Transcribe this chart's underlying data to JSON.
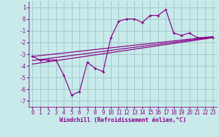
{
  "xlabel": "Windchill (Refroidissement éolien,°C)",
  "background_color": "#c8eaea",
  "grid_color": "#a0c8c8",
  "line_color": "#880088",
  "x_data": [
    0,
    1,
    2,
    3,
    4,
    5,
    6,
    7,
    8,
    9,
    10,
    11,
    12,
    13,
    14,
    15,
    16,
    17,
    18,
    19,
    20,
    21,
    22,
    23
  ],
  "y_main": [
    -3.2,
    -3.5,
    -3.5,
    -3.5,
    -4.8,
    -6.5,
    -6.2,
    -3.7,
    -4.2,
    -4.5,
    -1.6,
    -0.2,
    0.0,
    0.0,
    -0.3,
    0.3,
    0.3,
    0.8,
    -1.2,
    -1.4,
    -1.2,
    -1.6,
    -1.6,
    -1.6
  ],
  "reg_lines": [
    {
      "x0": 0,
      "y0": -3.2,
      "x1": 23,
      "y1": -1.5
    },
    {
      "x0": 0,
      "y0": -3.55,
      "x1": 23,
      "y1": -1.55
    },
    {
      "x0": 0,
      "y0": -3.85,
      "x1": 23,
      "y1": -1.6
    }
  ],
  "xlim": [
    -0.5,
    23.5
  ],
  "ylim": [
    -7.5,
    1.5
  ],
  "yticks": [
    1,
    0,
    -1,
    -2,
    -3,
    -4,
    -5,
    -6,
    -7
  ],
  "xticks": [
    0,
    1,
    2,
    3,
    4,
    5,
    6,
    7,
    8,
    9,
    10,
    11,
    12,
    13,
    14,
    15,
    16,
    17,
    18,
    19,
    20,
    21,
    22,
    23
  ],
  "xlabel_fontsize": 6.0,
  "tick_fontsize": 5.5
}
